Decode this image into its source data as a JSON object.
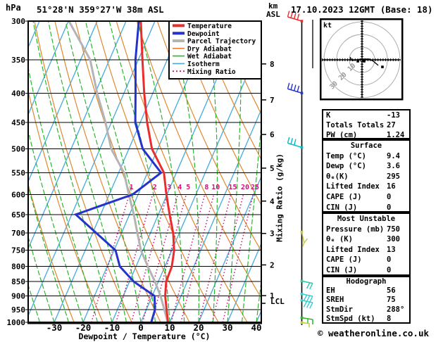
{
  "header": {
    "pressure_unit": "hPa",
    "title": "51°28'N 359°27'W 38m ASL",
    "date": "17.10.2023 12GMT (Base: 18)",
    "altitude_unit_line1": "km",
    "altitude_unit_line2": "ASL"
  },
  "legend": {
    "items": [
      {
        "label": "Temperature",
        "color": "#ea2c2c",
        "width": 4,
        "dash": ""
      },
      {
        "label": "Dewpoint",
        "color": "#2433cc",
        "width": 4,
        "dash": ""
      },
      {
        "label": "Parcel Trajectory",
        "color": "#b4b4b4",
        "width": 4,
        "dash": ""
      },
      {
        "label": "Dry Adiabat",
        "color": "#e08830",
        "width": 1.6,
        "dash": ""
      },
      {
        "label": "Wet Adiabat",
        "color": "#28b828",
        "width": 1.6,
        "dash": ""
      },
      {
        "label": "Isotherm",
        "color": "#44aadd",
        "width": 1.6,
        "dash": ""
      },
      {
        "label": "Mixing Ratio",
        "color": "#cc1177",
        "width": 1.8,
        "dash": "2 3"
      }
    ]
  },
  "chart_data": {
    "type": "line",
    "subtype": "skew-t-log-p-sounding",
    "pressure_axis": {
      "unit": "hPa",
      "ticks": [
        300,
        350,
        400,
        450,
        500,
        550,
        600,
        650,
        700,
        750,
        800,
        850,
        900,
        950,
        1000
      ],
      "range": [
        300,
        1000
      ]
    },
    "temp_axis": {
      "label": "Dewpoint / Temperature (°C)",
      "unit": "°C",
      "ticks": [
        -30,
        -20,
        -10,
        0,
        10,
        20,
        30,
        40
      ]
    },
    "altitude_axis": {
      "ticks": [
        {
          "km": 8,
          "hpa": 356
        },
        {
          "km": 7,
          "hpa": 411
        },
        {
          "km": 6,
          "hpa": 472
        },
        {
          "km": 5,
          "hpa": 540
        },
        {
          "km": 4,
          "hpa": 616
        },
        {
          "km": 3,
          "hpa": 701
        },
        {
          "km": 2,
          "hpa": 795
        },
        {
          "km": 1,
          "hpa": 899
        }
      ],
      "lcl": {
        "label": "LCL",
        "hpa": 927
      }
    },
    "mixing_ratio": {
      "label": "Mixing Ratio (g/kg)",
      "values": [
        1,
        2,
        3,
        4,
        5,
        8,
        10,
        15,
        20,
        25
      ],
      "label_pressure": 583
    },
    "series": [
      {
        "name": "Temperature",
        "color": "#ea2c2c",
        "points": [
          [
            1000,
            9.4
          ],
          [
            950,
            7.0
          ],
          [
            900,
            4.5
          ],
          [
            850,
            2.7
          ],
          [
            800,
            2.4
          ],
          [
            750,
            0.8
          ],
          [
            700,
            -2.1
          ],
          [
            650,
            -6.1
          ],
          [
            600,
            -10.2
          ],
          [
            550,
            -14.3
          ],
          [
            500,
            -22.0
          ],
          [
            450,
            -27.6
          ],
          [
            400,
            -33.0
          ],
          [
            350,
            -38.6
          ],
          [
            300,
            -44.9
          ]
        ]
      },
      {
        "name": "Dewpoint",
        "color": "#2433cc",
        "points": [
          [
            1000,
            3.6
          ],
          [
            950,
            3.0
          ],
          [
            900,
            0.8
          ],
          [
            850,
            -8.5
          ],
          [
            800,
            -15.6
          ],
          [
            750,
            -19.5
          ],
          [
            700,
            -28.7
          ],
          [
            650,
            -38.6
          ],
          [
            600,
            -21.9
          ],
          [
            550,
            -15.3
          ],
          [
            500,
            -25.2
          ],
          [
            450,
            -31.7
          ],
          [
            400,
            -36.0
          ],
          [
            350,
            -41.0
          ],
          [
            300,
            -45.6
          ]
        ]
      },
      {
        "name": "Parcel Trajectory",
        "color": "#b4b4b4",
        "points": [
          [
            1000,
            9.3
          ],
          [
            950,
            6.2
          ],
          [
            900,
            2.9
          ],
          [
            850,
            -1.2
          ],
          [
            800,
            -5.9
          ],
          [
            750,
            -10.7
          ],
          [
            700,
            -14.5
          ],
          [
            650,
            -18.5
          ],
          [
            600,
            -23.2
          ],
          [
            550,
            -28.1
          ],
          [
            500,
            -36.1
          ],
          [
            450,
            -42.0
          ],
          [
            400,
            -49.3
          ],
          [
            350,
            -56.7
          ],
          [
            300,
            -69.8
          ]
        ]
      }
    ],
    "background": {
      "isotherm_step_c": 10,
      "dry_adiabat_step_k": 10,
      "wet_adiabat_step_c": 5,
      "colors": {
        "isotherm": "#44aadd",
        "dry_adiabat": "#e08830",
        "wet_adiabat": "#28b828",
        "mixing_ratio": "#cc1177"
      }
    },
    "wind_barbs": [
      {
        "hpa": 300,
        "color": "#ea2c2c",
        "shape": "left",
        "feathers": 4
      },
      {
        "hpa": 400,
        "color": "#2433cc",
        "shape": "left",
        "feathers": 4
      },
      {
        "hpa": 497,
        "color": "#00b8c8",
        "shape": "left",
        "feathers": 3
      },
      {
        "hpa": 697,
        "color": "#c8c83c",
        "shape": "stub",
        "feathers": 1
      },
      {
        "hpa": 848,
        "color": "#2cc8a8",
        "shape": "right",
        "feathers": 2
      },
      {
        "hpa": 893,
        "color": "#38cccc",
        "shape": "right",
        "feathers": 3
      },
      {
        "hpa": 916,
        "color": "#38cccc",
        "shape": "right",
        "feathers": 3
      },
      {
        "hpa": 982,
        "color": "#28b828",
        "shape": "flag",
        "feathers": 1
      },
      {
        "hpa": 1001,
        "color": "#c8c83c",
        "shape": "hook",
        "feathers": 1
      }
    ],
    "hodograph": {
      "unit_label": "kt",
      "ring_labels": [
        10,
        20,
        30
      ],
      "kt_per_ring": 10,
      "trace_kt": [
        [
          -9.4,
          2.2
        ],
        [
          -7.8,
          -0.6
        ],
        [
          -0.6,
          0.6
        ],
        [
          5.6,
          0.6
        ],
        [
          8.9,
          -1.1
        ],
        [
          12.8,
          -4.4
        ]
      ],
      "markers_kt": [
        [
          -3.3,
          -1.1
        ],
        [
          1.7,
          -1.1
        ],
        [
          16.1,
          -5.6
        ]
      ]
    }
  },
  "stats_tables": [
    {
      "header": "",
      "rows": [
        [
          "K",
          "-13"
        ],
        [
          "Totals Totals",
          "27"
        ],
        [
          "PW (cm)",
          "1.24"
        ]
      ]
    },
    {
      "header": "Surface",
      "rows": [
        [
          "Temp (°C)",
          "9.4"
        ],
        [
          "Dewp (°C)",
          "3.6"
        ],
        [
          "θₑ(K)",
          "295"
        ],
        [
          "Lifted Index",
          "16"
        ],
        [
          "CAPE (J)",
          "0"
        ],
        [
          "CIN (J)",
          "0"
        ]
      ]
    },
    {
      "header": "Most Unstable",
      "rows": [
        [
          "Pressure (mb)",
          "750"
        ],
        [
          "θₑ (K)",
          "300"
        ],
        [
          "Lifted Index",
          "13"
        ],
        [
          "CAPE (J)",
          "0"
        ],
        [
          "CIN (J)",
          "0"
        ]
      ]
    },
    {
      "header": "Hodograph",
      "rows": [
        [
          "EH",
          "56"
        ],
        [
          "SREH",
          "75"
        ],
        [
          "StmDir",
          "288°"
        ],
        [
          "StmSpd (kt)",
          "8"
        ]
      ]
    }
  ],
  "footer": {
    "copyright": "© weatheronline.co.uk"
  }
}
